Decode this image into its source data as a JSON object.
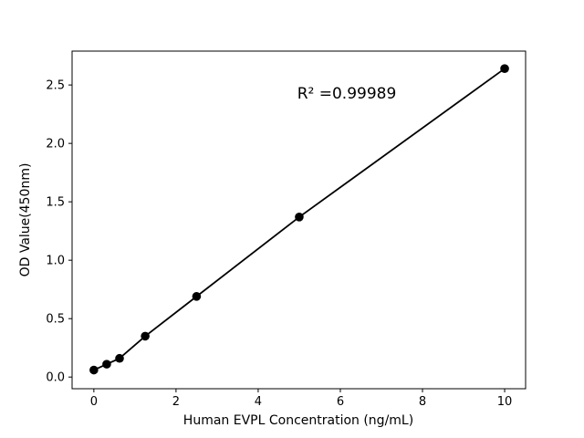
{
  "figure": {
    "background": "#ffffff"
  },
  "chart_data": {
    "type": "scatter",
    "title": "",
    "xlabel": "Human EVPL Concentration (ng/mL)",
    "ylabel": "OD Value(450nm)",
    "annotation": "R² =0.99989",
    "x": [
      0,
      0.3125,
      0.625,
      1.25,
      2.5,
      5,
      10
    ],
    "y": [
      0.06,
      0.11,
      0.16,
      0.35,
      0.69,
      1.37,
      2.64
    ],
    "series_name": "standard-curve",
    "xticks": [
      0,
      2,
      4,
      6,
      8,
      10
    ],
    "xtick_labels": [
      "0",
      "2",
      "4",
      "6",
      "8",
      "10"
    ],
    "yticks": [
      0.0,
      0.5,
      1.0,
      1.5,
      2.0,
      2.5
    ],
    "ytick_labels": [
      "0.0",
      "0.5",
      "1.0",
      "1.5",
      "2.0",
      "2.5"
    ],
    "xlim": [
      -0.53,
      10.51
    ],
    "ylim": [
      -0.1,
      2.79
    ],
    "grid": false,
    "legend": "none",
    "line_color": "#000000",
    "marker_color": "#000000",
    "marker_shape": "circle"
  }
}
